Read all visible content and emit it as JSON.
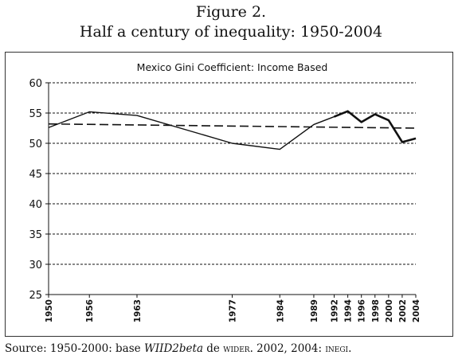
{
  "figure": {
    "label": "Figure 2.",
    "title": "Half a century of inequality: 1950-2004"
  },
  "chart_data": {
    "type": "line",
    "title": "Mexico Gini Coefficient: Income Based",
    "xlabel": "",
    "ylabel": "",
    "x": [
      1950,
      1956,
      1963,
      1977,
      1984,
      1989,
      1992,
      1994,
      1996,
      1998,
      2000,
      2002,
      2004
    ],
    "x_tick_labels": [
      "1950",
      "1956",
      "1963",
      "1977",
      "1984",
      "1989",
      "1992",
      "1994",
      "1996",
      "1998",
      "2000",
      "2002",
      "2004"
    ],
    "ylim": [
      25,
      60
    ],
    "y_ticks": [
      25,
      30,
      35,
      40,
      45,
      50,
      55,
      60
    ],
    "y_tick_labels": [
      "25",
      "30",
      "35",
      "40",
      "45",
      "50",
      "55",
      "60"
    ],
    "series": [
      {
        "values": [
          52.6,
          55.2,
          54.6,
          50.0,
          49.0,
          53.1,
          54.4,
          55.3,
          53.5,
          54.8,
          53.8,
          50.2,
          50.8
        ],
        "style": "solid",
        "color": "#111111"
      },
      {
        "values": [
          53.2,
          52.5
        ],
        "x": [
          1950,
          2004
        ],
        "style": "dashed",
        "color": "#111111"
      }
    ],
    "grid": "dashed horizontal"
  },
  "source": {
    "prefix": "Source: 1950-2000: base ",
    "dataset": "WIID2beta",
    "mid": " de ",
    "org": "wider",
    "suffix": ". 2002, 2004: ",
    "org2": "inegi",
    "end": "."
  }
}
